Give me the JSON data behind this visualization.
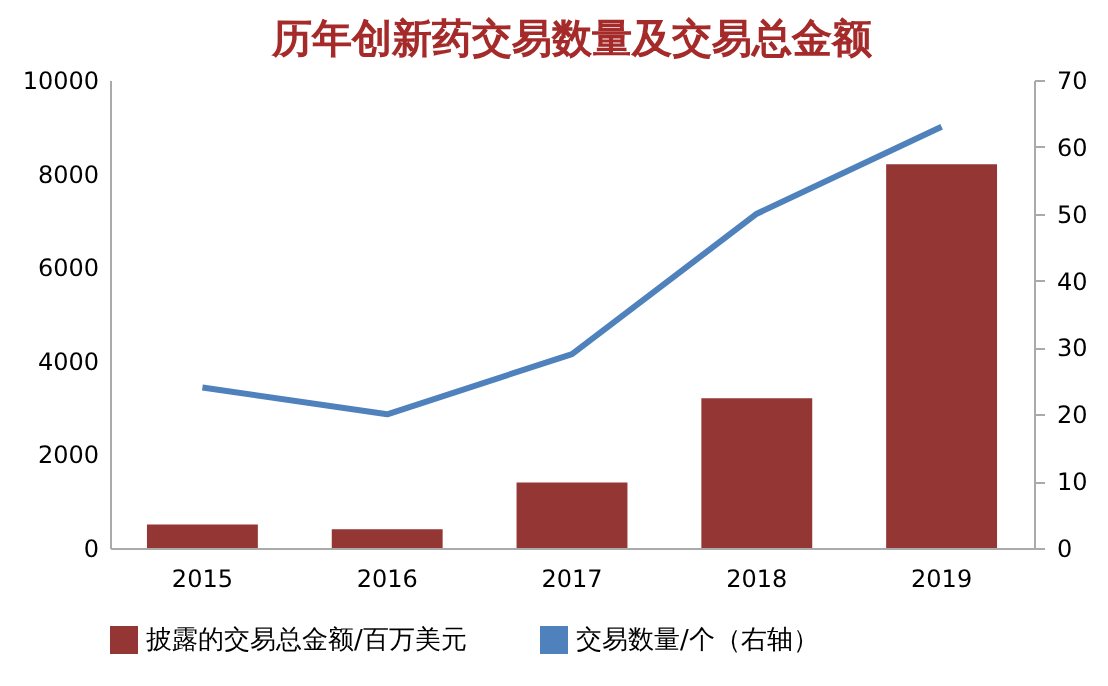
{
  "chart_data": {
    "type": "bar",
    "title": "历年创新药交易数量及交易总金额",
    "categories": [
      "2015",
      "2016",
      "2017",
      "2018",
      "2019"
    ],
    "series": [
      {
        "name": "披露的交易总金额/百万美元",
        "color": "#943634",
        "values": [
          500,
          400,
          1400,
          3200,
          8200
        ]
      },
      {
        "name": "交易数量/个（右轴）",
        "type": "line",
        "axis": "y2",
        "color": "#4f81bd",
        "values": [
          24,
          20,
          29,
          50,
          63
        ]
      }
    ],
    "ylim": [
      0,
      10000
    ],
    "yticks": [
      0,
      2000,
      4000,
      6000,
      8000,
      10000
    ],
    "y2lim": [
      0,
      70
    ],
    "y2ticks": [
      0,
      10,
      20,
      30,
      40,
      50,
      60,
      70
    ],
    "grid": false,
    "legend": "bottom",
    "line_style": "solid",
    "marker": "none"
  }
}
